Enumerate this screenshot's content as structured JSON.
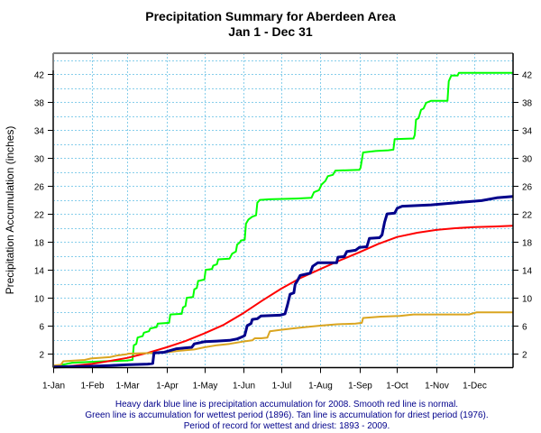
{
  "chart_data": {
    "type": "line",
    "title": "Precipitation Summary for Aberdeen Area",
    "subtitle": "Jan 1 - Dec 31",
    "xlabel": "",
    "ylabel": "Precipitation Accumulation (inches)",
    "xlim": [
      0,
      365
    ],
    "ylim": [
      0,
      45
    ],
    "grid": true,
    "x_ticks": [
      {
        "day": 0,
        "label": "1-Jan"
      },
      {
        "day": 31,
        "label": "1-Feb"
      },
      {
        "day": 59,
        "label": "1-Mar"
      },
      {
        "day": 90,
        "label": "1-Apr"
      },
      {
        "day": 120,
        "label": "1-May"
      },
      {
        "day": 151,
        "label": "1-Jun"
      },
      {
        "day": 181,
        "label": "1-Jul"
      },
      {
        "day": 212,
        "label": "1-Aug"
      },
      {
        "day": 243,
        "label": "1-Sep"
      },
      {
        "day": 273,
        "label": "1-Oct"
      },
      {
        "day": 304,
        "label": "1-Nov"
      },
      {
        "day": 334,
        "label": "1-Dec"
      }
    ],
    "y_ticks": [
      2,
      6,
      10,
      14,
      18,
      22,
      26,
      30,
      34,
      38,
      42
    ],
    "y_minor_grid": [
      4,
      8,
      12,
      16,
      20,
      24,
      28,
      32,
      36,
      40,
      44
    ],
    "series": [
      {
        "name": "Wettest period (1896)",
        "color": "#00ff00",
        "width": 2,
        "points": [
          [
            0,
            0.2
          ],
          [
            10,
            0.5
          ],
          [
            15,
            0.7
          ],
          [
            40,
            0.9
          ],
          [
            58,
            1.0
          ],
          [
            63,
            1.1
          ],
          [
            64,
            3.2
          ],
          [
            66,
            3.4
          ],
          [
            67,
            4.3
          ],
          [
            71,
            4.5
          ],
          [
            72,
            5.0
          ],
          [
            76,
            5.2
          ],
          [
            77,
            5.6
          ],
          [
            82,
            5.8
          ],
          [
            83,
            6.3
          ],
          [
            92,
            6.4
          ],
          [
            93,
            7.6
          ],
          [
            102,
            7.7
          ],
          [
            103,
            8.6
          ],
          [
            105,
            8.8
          ],
          [
            106,
            10.0
          ],
          [
            111,
            10.1
          ],
          [
            112,
            11.2
          ],
          [
            114,
            11.4
          ],
          [
            115,
            12.4
          ],
          [
            120,
            12.6
          ],
          [
            121,
            14.0
          ],
          [
            126,
            14.1
          ],
          [
            127,
            14.6
          ],
          [
            130,
            14.8
          ],
          [
            131,
            15.5
          ],
          [
            140,
            15.6
          ],
          [
            142,
            16.3
          ],
          [
            145,
            16.6
          ],
          [
            146,
            17.6
          ],
          [
            148,
            17.9
          ],
          [
            149,
            18.2
          ],
          [
            152,
            18.3
          ],
          [
            153,
            20.6
          ],
          [
            155,
            21.2
          ],
          [
            158,
            21.6
          ],
          [
            161,
            21.8
          ],
          [
            162,
            23.6
          ],
          [
            164,
            24.0
          ],
          [
            172,
            24.1
          ],
          [
            193,
            24.2
          ],
          [
            205,
            24.3
          ],
          [
            207,
            25.1
          ],
          [
            211,
            25.4
          ],
          [
            213,
            26.2
          ],
          [
            216,
            26.7
          ],
          [
            218,
            27.4
          ],
          [
            222,
            27.6
          ],
          [
            224,
            28.2
          ],
          [
            243,
            28.3
          ],
          [
            244,
            28.6
          ],
          [
            246,
            30.8
          ],
          [
            256,
            31.0
          ],
          [
            266,
            31.1
          ],
          [
            270,
            31.2
          ],
          [
            271,
            32.7
          ],
          [
            286,
            32.8
          ],
          [
            287,
            33.3
          ],
          [
            288,
            35.5
          ],
          [
            290,
            35.7
          ],
          [
            292,
            36.9
          ],
          [
            294,
            37.1
          ],
          [
            296,
            37.9
          ],
          [
            300,
            38.2
          ],
          [
            313,
            38.2
          ],
          [
            314,
            41.0
          ],
          [
            316,
            41.8
          ],
          [
            321,
            41.8
          ],
          [
            322,
            42.2
          ],
          [
            365,
            42.2
          ]
        ]
      },
      {
        "name": "Normal",
        "color": "#ff0000",
        "width": 2,
        "points": [
          [
            0,
            0
          ],
          [
            15,
            0.25
          ],
          [
            31,
            0.55
          ],
          [
            45,
            0.95
          ],
          [
            59,
            1.4
          ],
          [
            75,
            2.1
          ],
          [
            90,
            2.9
          ],
          [
            105,
            3.8
          ],
          [
            120,
            4.9
          ],
          [
            135,
            6.1
          ],
          [
            151,
            7.8
          ],
          [
            166,
            9.6
          ],
          [
            181,
            11.3
          ],
          [
            196,
            12.8
          ],
          [
            212,
            14.1
          ],
          [
            227,
            15.3
          ],
          [
            243,
            16.5
          ],
          [
            258,
            17.7
          ],
          [
            273,
            18.7
          ],
          [
            289,
            19.3
          ],
          [
            304,
            19.7
          ],
          [
            319,
            19.95
          ],
          [
            334,
            20.1
          ],
          [
            350,
            20.2
          ],
          [
            365,
            20.3
          ]
        ]
      },
      {
        "name": "Driest period (1976)",
        "color": "#daa520",
        "width": 2,
        "points": [
          [
            0,
            0.3
          ],
          [
            6,
            0.4
          ],
          [
            8,
            0.9
          ],
          [
            25,
            1.1
          ],
          [
            30,
            1.3
          ],
          [
            45,
            1.5
          ],
          [
            50,
            1.7
          ],
          [
            58,
            1.9
          ],
          [
            60,
            2.0
          ],
          [
            80,
            2.1
          ],
          [
            90,
            2.2
          ],
          [
            100,
            2.4
          ],
          [
            112,
            2.6
          ],
          [
            120,
            2.9
          ],
          [
            130,
            3.2
          ],
          [
            140,
            3.4
          ],
          [
            150,
            3.7
          ],
          [
            158,
            3.9
          ],
          [
            160,
            4.2
          ],
          [
            165,
            4.2
          ],
          [
            170,
            4.3
          ],
          [
            172,
            5.2
          ],
          [
            180,
            5.4
          ],
          [
            190,
            5.6
          ],
          [
            200,
            5.8
          ],
          [
            212,
            6.0
          ],
          [
            225,
            6.2
          ],
          [
            240,
            6.3
          ],
          [
            245,
            6.4
          ],
          [
            246,
            7.1
          ],
          [
            260,
            7.3
          ],
          [
            275,
            7.4
          ],
          [
            286,
            7.6
          ],
          [
            300,
            7.6
          ],
          [
            330,
            7.6
          ],
          [
            336,
            7.9
          ],
          [
            365,
            7.9
          ]
        ]
      },
      {
        "name": "2008",
        "color": "#00008b",
        "width": 3,
        "points": [
          [
            0,
            0.1
          ],
          [
            30,
            0.2
          ],
          [
            45,
            0.3
          ],
          [
            58,
            0.4
          ],
          [
            75,
            0.5
          ],
          [
            79,
            0.6
          ],
          [
            80,
            2.1
          ],
          [
            88,
            2.2
          ],
          [
            92,
            2.4
          ],
          [
            98,
            2.7
          ],
          [
            104,
            2.8
          ],
          [
            110,
            2.9
          ],
          [
            112,
            3.4
          ],
          [
            120,
            3.7
          ],
          [
            130,
            3.8
          ],
          [
            140,
            3.9
          ],
          [
            146,
            4.1
          ],
          [
            150,
            4.4
          ],
          [
            152,
            4.6
          ],
          [
            154,
            6.0
          ],
          [
            157,
            6.3
          ],
          [
            158,
            6.9
          ],
          [
            162,
            7.0
          ],
          [
            165,
            7.4
          ],
          [
            180,
            7.5
          ],
          [
            184,
            7.7
          ],
          [
            186,
            9.0
          ],
          [
            188,
            10.5
          ],
          [
            191,
            10.7
          ],
          [
            192,
            11.9
          ],
          [
            194,
            12.5
          ],
          [
            196,
            13.2
          ],
          [
            204,
            13.5
          ],
          [
            206,
            14.5
          ],
          [
            210,
            15.0
          ],
          [
            225,
            15.0
          ],
          [
            226,
            15.8
          ],
          [
            231,
            15.9
          ],
          [
            233,
            16.6
          ],
          [
            240,
            16.8
          ],
          [
            243,
            17.2
          ],
          [
            249,
            17.3
          ],
          [
            251,
            18.5
          ],
          [
            259,
            18.6
          ],
          [
            261,
            19.0
          ],
          [
            263,
            20.8
          ],
          [
            265,
            22.0
          ],
          [
            271,
            22.1
          ],
          [
            273,
            22.8
          ],
          [
            277,
            23.1
          ],
          [
            300,
            23.3
          ],
          [
            320,
            23.6
          ],
          [
            340,
            23.9
          ],
          [
            352,
            24.3
          ],
          [
            365,
            24.5
          ]
        ]
      }
    ]
  },
  "caption": {
    "line1": "Heavy dark blue line is precipitation accumulation for 2008. Smooth red line is normal.",
    "line2": "Green line is accumulation for wettest period (1896).   Tan line is accumulation for driest period (1976).",
    "line3": "Period of record for wettest and driest: 1893 - 2009."
  }
}
